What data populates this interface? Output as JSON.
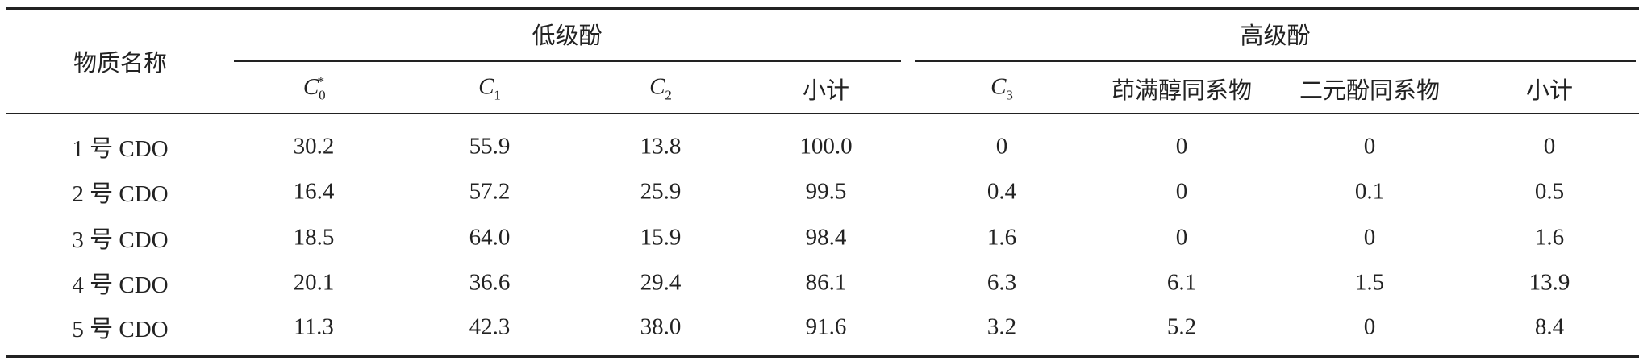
{
  "table": {
    "corner": "物质名称",
    "groups": [
      "低级酚",
      "高级酚"
    ],
    "columns": [
      {
        "base": "C",
        "sub": "0",
        "sup": "*"
      },
      {
        "base": "C",
        "sub": "1"
      },
      {
        "base": "C",
        "sub": "2"
      },
      {
        "base": "小计"
      },
      {
        "base": "C",
        "sub": "3"
      },
      {
        "base": "茚满醇同系物"
      },
      {
        "base": "二元酚同系物"
      },
      {
        "base": "小计"
      }
    ],
    "rows": [
      [
        "1 号 CDO",
        "30.2",
        "55.9",
        "13.8",
        "100.0",
        "0",
        "0",
        "0",
        "0"
      ],
      [
        "2 号 CDO",
        "16.4",
        "57.2",
        "25.9",
        "99.5",
        "0.4",
        "0",
        "0.1",
        "0.5"
      ],
      [
        "3 号 CDO",
        "18.5",
        "64.0",
        "15.9",
        "98.4",
        "1.6",
        "0",
        "0",
        "1.6"
      ],
      [
        "4 号 CDO",
        "20.1",
        "36.6",
        "29.4",
        "86.1",
        "6.3",
        "6.1",
        "1.5",
        "13.9"
      ],
      [
        "5 号 CDO",
        "11.3",
        "42.3",
        "38.0",
        "91.6",
        "3.2",
        "5.2",
        "0",
        "8.4"
      ]
    ]
  }
}
